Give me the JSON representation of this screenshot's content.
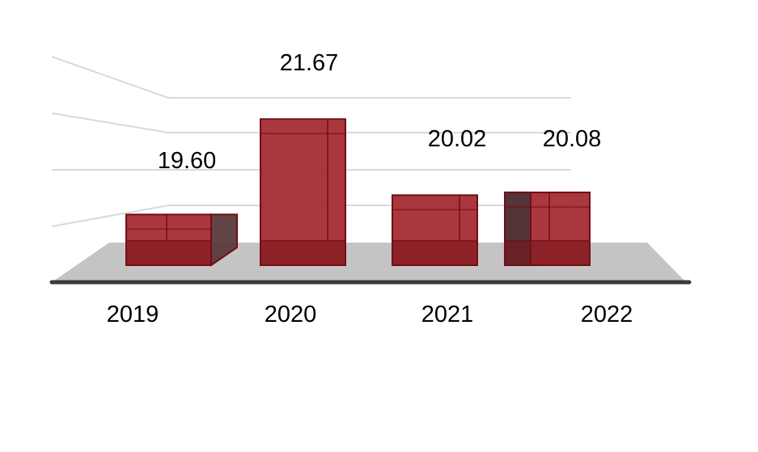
{
  "chart_data": {
    "type": "bar",
    "style": "3d-column",
    "categories": [
      "2019",
      "2020",
      "2021",
      "2022"
    ],
    "values": [
      19.6,
      21.67,
      20.02,
      20.08
    ],
    "data_labels": [
      "19.60",
      "21.67",
      "20.02",
      "20.08"
    ],
    "title": "",
    "xlabel": "",
    "ylabel": "",
    "ylim": [
      18.5,
      22
    ],
    "gridlines": true,
    "legend": "none",
    "colors": {
      "bar": "#a3262e",
      "bar_edge": "#6e0f15",
      "floor": "#c4c4c4",
      "grid": "#d9d9d9",
      "baseline": "#3a3a3a"
    }
  }
}
